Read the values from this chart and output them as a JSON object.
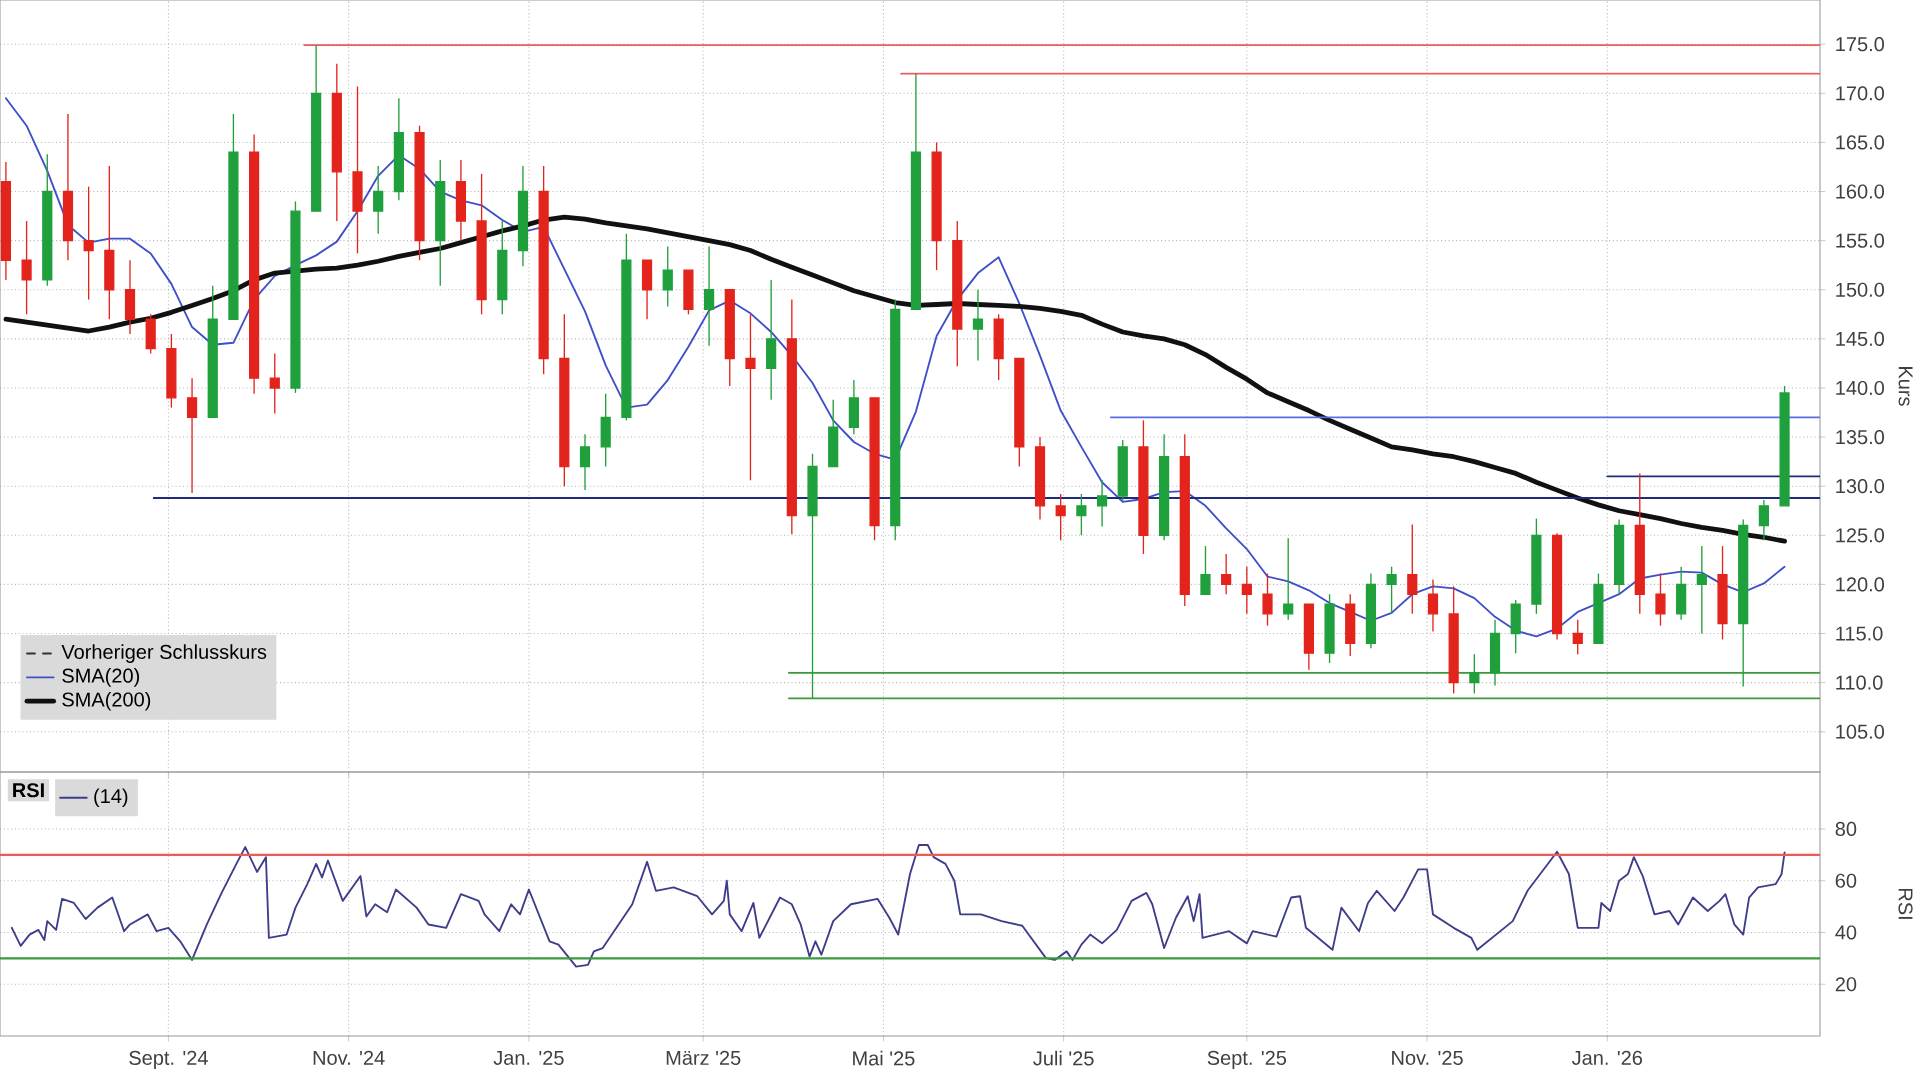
{
  "chart_data": [
    {
      "type": "candlestick",
      "ylabel": "Kurs",
      "x": [
        "2024-07-08",
        "2024-07-15",
        "2024-07-22",
        "2024-07-29",
        "2024-08-05",
        "2024-08-12",
        "2024-08-19",
        "2024-08-26",
        "2024-09-02",
        "2024-09-09",
        "2024-09-16",
        "2024-09-23",
        "2024-09-30",
        "2024-10-07",
        "2024-10-14",
        "2024-10-21",
        "2024-10-28",
        "2024-11-04",
        "2024-11-11",
        "2024-11-18",
        "2024-11-25",
        "2024-12-02",
        "2024-12-09",
        "2024-12-16",
        "2024-12-23",
        "2024-12-30",
        "2025-01-06",
        "2025-01-13",
        "2025-01-20",
        "2025-01-27",
        "2025-02-03",
        "2025-02-10",
        "2025-02-17",
        "2025-02-24",
        "2025-03-03",
        "2025-03-10",
        "2025-03-17",
        "2025-03-24",
        "2025-03-31",
        "2025-04-07",
        "2025-04-14",
        "2025-04-21",
        "2025-04-28",
        "2025-05-05",
        "2025-05-12",
        "2025-05-19",
        "2025-05-26",
        "2025-06-02",
        "2025-06-09",
        "2025-06-16",
        "2025-06-23",
        "2025-06-30",
        "2025-07-07",
        "2025-07-14",
        "2025-07-21",
        "2025-07-28",
        "2025-08-04",
        "2025-08-11",
        "2025-08-18",
        "2025-08-25",
        "2025-09-01",
        "2025-09-08",
        "2025-09-15",
        "2025-09-22",
        "2025-09-29",
        "2025-10-06",
        "2025-10-13",
        "2025-10-20",
        "2025-10-27",
        "2025-11-03",
        "2025-11-10",
        "2025-11-17",
        "2025-11-24",
        "2025-12-01",
        "2025-12-08",
        "2025-12-15",
        "2025-12-22",
        "2025-12-29",
        "2026-01-05",
        "2026-01-12",
        "2026-01-19",
        "2026-01-26",
        "2026-02-02",
        "2026-02-09",
        "2026-02-16",
        "2026-02-23",
        "2026-03-02"
      ],
      "ohlc": [
        [
          161,
          163,
          151,
          153
        ],
        [
          153,
          157,
          147.5,
          151
        ],
        [
          151,
          163.8,
          150.4,
          160
        ],
        [
          160,
          167.9,
          153,
          155
        ],
        [
          155,
          160.5,
          149,
          154
        ],
        [
          154,
          162.6,
          147,
          150
        ],
        [
          150,
          153,
          145.5,
          147
        ],
        [
          147,
          147.5,
          143.5,
          144
        ],
        [
          144,
          145.5,
          138,
          139
        ],
        [
          139,
          141,
          129.3,
          137
        ],
        [
          137,
          150.4,
          137,
          147
        ],
        [
          147,
          167.9,
          147,
          164
        ],
        [
          164,
          165.8,
          139.4,
          141
        ],
        [
          141,
          143.5,
          137.4,
          140
        ],
        [
          140,
          159,
          139.5,
          158
        ],
        [
          158,
          174.9,
          158,
          170
        ],
        [
          170,
          173,
          157,
          162
        ],
        [
          162,
          170.7,
          153.7,
          158
        ],
        [
          158,
          162.6,
          155.7,
          160
        ],
        [
          160,
          169.5,
          159.1,
          166
        ],
        [
          166,
          166.7,
          153,
          155
        ],
        [
          155,
          163.2,
          150.4,
          161
        ],
        [
          161,
          163.2,
          155,
          157
        ],
        [
          157,
          161.8,
          147.5,
          149
        ],
        [
          149,
          157,
          147.5,
          154
        ],
        [
          154,
          162.6,
          152.4,
          160
        ],
        [
          160,
          162.6,
          141.4,
          143
        ],
        [
          143,
          147.5,
          130,
          132
        ],
        [
          132,
          135.3,
          129.6,
          134
        ],
        [
          134,
          139.4,
          132,
          137
        ],
        [
          137,
          155.7,
          136.7,
          153
        ],
        [
          153,
          153,
          147,
          150
        ],
        [
          150,
          154.4,
          148.3,
          152
        ],
        [
          152,
          152,
          147.5,
          148
        ],
        [
          148,
          154.4,
          144.3,
          150
        ],
        [
          150,
          150,
          140.2,
          143
        ],
        [
          143,
          147.5,
          130.6,
          142
        ],
        [
          142,
          151,
          138.8,
          145
        ],
        [
          145,
          149,
          125.1,
          127
        ],
        [
          127,
          133.3,
          108.4,
          132
        ],
        [
          132,
          138.8,
          132,
          136
        ],
        [
          136,
          140.8,
          135.3,
          139
        ],
        [
          139,
          139,
          124.5,
          126
        ],
        [
          126,
          149,
          124.5,
          148
        ],
        [
          148,
          172,
          148,
          164
        ],
        [
          164,
          165,
          152,
          155
        ],
        [
          155,
          157,
          142.2,
          146
        ],
        [
          146,
          150,
          142.8,
          147
        ],
        [
          147,
          147.5,
          140.8,
          143
        ],
        [
          143,
          143,
          132,
          134
        ],
        [
          134,
          135,
          126.6,
          128
        ],
        [
          128,
          129.2,
          124.5,
          127
        ],
        [
          127,
          129.2,
          125,
          128
        ],
        [
          128,
          130.6,
          125.9,
          129
        ],
        [
          129,
          134.7,
          128.5,
          134
        ],
        [
          134,
          136.7,
          123.1,
          125
        ],
        [
          125,
          135.3,
          124.5,
          133
        ],
        [
          133,
          135.3,
          117.8,
          119
        ],
        [
          119,
          123.9,
          119,
          121
        ],
        [
          121,
          123.1,
          119,
          120
        ],
        [
          120,
          121.8,
          117,
          119
        ],
        [
          119,
          121.1,
          115.8,
          117
        ],
        [
          117,
          124.7,
          116.4,
          118
        ],
        [
          118,
          118,
          111.3,
          113
        ],
        [
          113,
          119,
          112,
          118
        ],
        [
          118,
          119,
          112.7,
          114
        ],
        [
          114,
          121.1,
          113.5,
          120
        ],
        [
          120,
          121.8,
          117,
          121
        ],
        [
          121,
          126.1,
          117,
          119
        ],
        [
          119,
          120.5,
          115.2,
          117
        ],
        [
          117,
          119.8,
          108.9,
          110
        ],
        [
          110,
          112.9,
          108.9,
          111
        ],
        [
          111,
          116.4,
          109.7,
          115
        ],
        [
          115,
          118.4,
          113,
          118
        ],
        [
          118,
          126.7,
          117,
          125
        ],
        [
          125,
          125.2,
          114.4,
          115
        ],
        [
          115,
          116.4,
          112.9,
          114
        ],
        [
          114,
          121.1,
          114,
          120
        ],
        [
          120,
          126.6,
          119,
          126
        ],
        [
          126,
          131.3,
          117,
          119
        ],
        [
          119,
          121.1,
          115.8,
          117
        ],
        [
          117,
          121.8,
          116.4,
          120
        ],
        [
          120,
          123.9,
          115,
          121
        ],
        [
          121,
          123.9,
          114.4,
          116
        ],
        [
          116,
          126.6,
          109.6,
          126
        ],
        [
          126,
          128.6,
          124.5,
          128
        ],
        [
          128,
          140.2,
          128,
          139.5
        ]
      ],
      "colors": [
        "#e3241c",
        "#e3241c",
        "#1fa03c",
        "#e3241c",
        "#e3241c",
        "#e3241c",
        "#e3241c",
        "#e3241c",
        "#e3241c",
        "#e3241c",
        "#1fa03c",
        "#1fa03c",
        "#e3241c",
        "#e3241c",
        "#1fa03c",
        "#1fa03c",
        "#e3241c",
        "#e3241c",
        "#1fa03c",
        "#1fa03c",
        "#e3241c",
        "#1fa03c",
        "#e3241c",
        "#e3241c",
        "#1fa03c",
        "#1fa03c",
        "#e3241c",
        "#e3241c",
        "#1fa03c",
        "#1fa03c",
        "#1fa03c",
        "#e3241c",
        "#1fa03c",
        "#e3241c",
        "#1fa03c",
        "#e3241c",
        "#e3241c",
        "#1fa03c",
        "#e3241c",
        "#1fa03c",
        "#1fa03c",
        "#1fa03c",
        "#e3241c",
        "#1fa03c",
        "#1fa03c",
        "#e3241c",
        "#e3241c",
        "#1fa03c",
        "#e3241c",
        "#e3241c",
        "#e3241c",
        "#e3241c",
        "#1fa03c",
        "#1fa03c",
        "#1fa03c",
        "#e3241c",
        "#1fa03c",
        "#e3241c",
        "#1fa03c",
        "#e3241c",
        "#e3241c",
        "#e3241c",
        "#1fa03c",
        "#e3241c",
        "#1fa03c",
        "#e3241c",
        "#1fa03c",
        "#1fa03c",
        "#e3241c",
        "#e3241c",
        "#e3241c",
        "#1fa03c",
        "#1fa03c",
        "#1fa03c",
        "#1fa03c",
        "#e3241c",
        "#e3241c",
        "#1fa03c",
        "#1fa03c",
        "#e3241c",
        "#e3241c",
        "#1fa03c",
        "#1fa03c",
        "#e3241c",
        "#1fa03c",
        "#1fa03c",
        "#1fa03c"
      ],
      "series": [
        {
          "name": "Vorheriger Schlusskurs",
          "type": "line",
          "color": "#333333",
          "line_style": "dashed",
          "values": [
            null,
            null,
            null,
            null,
            null,
            null,
            null,
            null,
            null,
            null,
            null,
            null,
            null,
            null,
            null,
            null,
            null,
            null,
            null,
            null,
            null,
            null,
            null,
            null,
            null,
            null,
            null,
            null,
            null,
            null,
            null,
            null,
            null,
            null,
            null,
            null,
            null,
            null,
            null,
            null,
            null,
            null,
            null,
            null,
            null,
            null,
            null,
            null,
            null,
            null,
            null,
            null,
            null,
            null,
            null,
            null,
            null,
            null,
            null,
            null,
            null,
            null,
            null,
            null,
            null,
            null,
            null,
            null,
            null,
            null,
            null,
            null,
            null,
            null,
            null,
            null,
            null,
            null,
            null,
            null,
            null,
            null,
            null,
            null,
            null,
            null,
            null
          ]
        },
        {
          "name": "SMA(20)",
          "type": "line",
          "color": "#3f4fc8",
          "values": [
            169.5,
            166.7,
            162.1,
            156.6,
            154.8,
            155.2,
            155.2,
            153.7,
            150.6,
            146.2,
            144.4,
            144.6,
            149,
            151.4,
            152.5,
            153.5,
            154.9,
            158,
            161.6,
            163.7,
            162.3,
            160,
            159.1,
            158.6,
            157.1,
            155.9,
            156.4,
            152.1,
            147.8,
            142.3,
            138,
            138.3,
            140.8,
            144.2,
            147.9,
            148.9,
            147.6,
            145.7,
            143.3,
            140.5,
            136.7,
            134.5,
            133.3,
            132.7,
            137.6,
            145.3,
            149,
            151.7,
            153.3,
            148.6,
            143.3,
            137.7,
            134,
            130.4,
            128.4,
            128.7,
            129.4,
            129.5,
            128,
            125.7,
            123.6,
            120.8,
            120.3,
            119.4,
            118.1,
            117.2,
            116.3,
            117.1,
            119,
            119.8,
            119.6,
            118.6,
            116.7,
            115.3,
            114.7,
            115.5,
            117.2,
            118.1,
            119,
            120.6,
            121,
            121.3,
            121.2,
            120,
            119.2,
            120.1,
            121.8
          ]
        },
        {
          "name": "SMA(200)",
          "type": "line",
          "color": "#111111",
          "values": [
            147,
            146.7,
            146.4,
            146.1,
            145.8,
            146.2,
            146.7,
            147.1,
            147.7,
            148.4,
            149.1,
            149.9,
            151,
            151.7,
            151.9,
            152.1,
            152.2,
            152.5,
            152.9,
            153.4,
            153.8,
            154.2,
            154.8,
            155.4,
            156,
            156.5,
            157.1,
            157.4,
            157.2,
            156.8,
            156.5,
            156.2,
            155.8,
            155.4,
            155,
            154.6,
            154,
            153.1,
            152.3,
            151.5,
            150.7,
            149.9,
            149.3,
            148.7,
            148.4,
            148.5,
            148.6,
            148.5,
            148.4,
            148.3,
            148.1,
            147.8,
            147.4,
            146.5,
            145.7,
            145.3,
            145,
            144.4,
            143.4,
            142.1,
            140.9,
            139.5,
            138.6,
            137.7,
            136.7,
            135.8,
            134.9,
            134,
            133.7,
            133.3,
            133,
            132.5,
            131.9,
            131.3,
            130.4,
            129.6,
            128.8,
            128.1,
            127.5,
            127.1,
            126.7,
            126.2,
            125.8,
            125.5,
            125.1,
            124.8,
            124.4
          ]
        },
        {
          "type": "line",
          "color": "#ee5a5a",
          "x": [
            "2024-10-17",
            "2026-03-14"
          ],
          "values": [
            174.9,
            174.9
          ]
        },
        {
          "type": "line",
          "color": "#ee5a5a",
          "x": [
            "2025-05-07",
            "2026-03-14"
          ],
          "values": [
            172,
            172
          ]
        },
        {
          "type": "line",
          "color": "#5b6ee0",
          "x": [
            "2025-07-17",
            "2026-03-14"
          ],
          "values": [
            137,
            137
          ]
        },
        {
          "type": "line",
          "color": "#1f2a7a",
          "x": [
            "2026-01-01",
            "2026-03-14"
          ],
          "values": [
            131,
            131
          ]
        },
        {
          "type": "line",
          "color": "#1f2a7a",
          "x": [
            "2024-08-27",
            "2026-03-14"
          ],
          "values": [
            128.8,
            128.8
          ]
        },
        {
          "type": "line",
          "color": "#3c9a3c",
          "x": [
            "2025-03-30",
            "2026-03-14"
          ],
          "values": [
            111,
            111
          ]
        },
        {
          "type": "line",
          "color": "#3c9a3c",
          "x": [
            "2025-03-30",
            "2026-03-14"
          ],
          "values": [
            108.4,
            108.4
          ]
        }
      ],
      "xlim": [
        "2024-07-06",
        "2026-03-14"
      ],
      "ylim": [
        100.9,
        179.5
      ],
      "xticks": [
        {
          "value": "2024-09-01",
          "label": null
        },
        {
          "value": "2024-11-01",
          "label": null
        },
        {
          "value": "2025-01-01",
          "label": null
        },
        {
          "value": "2025-03-01",
          "label": null
        },
        {
          "value": "2025-05-01",
          "label": null
        },
        {
          "value": "2025-07-01",
          "label": null
        },
        {
          "value": "2025-09-01",
          "label": null
        },
        {
          "value": "2025-11-01",
          "label": null
        },
        {
          "value": "2026-01-01",
          "label": null
        }
      ],
      "yticks": [
        {
          "value": 105,
          "label": "105.0"
        },
        {
          "value": 110,
          "label": "110.0"
        },
        {
          "value": 115,
          "label": "115.0"
        },
        {
          "value": 120,
          "label": "120.0"
        },
        {
          "value": 125,
          "label": "125.0"
        },
        {
          "value": 130,
          "label": "130.0"
        },
        {
          "value": 135,
          "label": "135.0"
        },
        {
          "value": 140,
          "label": "140.0"
        },
        {
          "value": 145,
          "label": "145.0"
        },
        {
          "value": 150,
          "label": "150.0"
        },
        {
          "value": 155,
          "label": "155.0"
        },
        {
          "value": 160,
          "label": "160.0"
        },
        {
          "value": 165,
          "label": "165.0"
        },
        {
          "value": 170,
          "label": "170.0"
        },
        {
          "value": 175,
          "label": "175.0"
        }
      ],
      "grid": true,
      "legend": "bottom left",
      "tick_labels": "y"
    },
    {
      "type": "line",
      "title": "RSI",
      "ylabel": "RSI",
      "x": [
        "2024-07-10",
        "2024-07-13",
        "2024-07-16",
        "2024-07-19",
        "2024-07-21",
        "2024-07-22",
        "2024-07-25",
        "2024-07-27",
        "2024-07-31",
        "2024-08-04",
        "2024-08-08",
        "2024-08-13",
        "2024-08-17",
        "2024-08-19",
        "2024-08-25",
        "2024-08-28",
        "2024-09-01",
        "2024-09-05",
        "2024-09-09",
        "2024-09-14",
        "2024-09-19",
        "2024-09-24",
        "2024-09-27",
        "2024-10-01",
        "2024-10-04",
        "2024-10-05",
        "2024-10-11",
        "2024-10-14",
        "2024-10-18",
        "2024-10-21",
        "2024-10-23",
        "2024-10-25",
        "2024-10-30",
        "2024-11-05",
        "2024-11-07",
        "2024-11-10",
        "2024-11-14",
        "2024-11-17",
        "2024-11-24",
        "2024-11-28",
        "2024-12-04",
        "2024-12-09",
        "2024-12-15",
        "2024-12-17",
        "2024-12-22",
        "2024-12-26",
        "2024-12-29",
        "2025-01-01",
        "2025-01-08",
        "2025-01-11",
        "2025-01-17",
        "2025-01-21",
        "2025-01-23",
        "2025-01-26",
        "2025-02-05",
        "2025-02-10",
        "2025-02-13",
        "2025-02-19",
        "2025-02-27",
        "2025-03-04",
        "2025-03-08",
        "2025-03-09",
        "2025-03-10",
        "2025-03-14",
        "2025-03-18",
        "2025-03-20",
        "2025-03-27",
        "2025-03-31",
        "2025-04-03",
        "2025-04-06",
        "2025-04-08",
        "2025-04-10",
        "2025-04-14",
        "2025-04-20",
        "2025-04-29",
        "2025-05-03",
        "2025-05-06",
        "2025-05-10",
        "2025-05-13",
        "2025-05-16",
        "2025-05-18",
        "2025-05-22",
        "2025-05-25",
        "2025-05-27",
        "2025-06-03",
        "2025-06-10",
        "2025-06-17",
        "2025-06-25",
        "2025-06-28",
        "2025-07-02",
        "2025-07-04",
        "2025-07-07",
        "2025-07-10",
        "2025-07-14",
        "2025-07-19",
        "2025-07-24",
        "2025-07-29",
        "2025-07-31",
        "2025-08-04",
        "2025-08-08",
        "2025-08-12",
        "2025-08-14",
        "2025-08-16",
        "2025-08-17",
        "2025-08-26",
        "2025-09-01",
        "2025-09-03",
        "2025-09-11",
        "2025-09-16",
        "2025-09-19",
        "2025-09-21",
        "2025-09-30",
        "2025-10-03",
        "2025-10-09",
        "2025-10-12",
        "2025-10-15",
        "2025-10-21",
        "2025-10-24",
        "2025-10-29",
        "2025-11-01",
        "2025-11-03",
        "2025-11-10",
        "2025-11-16",
        "2025-11-18",
        "2025-11-30",
        "2025-12-05",
        "2025-12-15",
        "2025-12-19",
        "2025-12-22",
        "2025-12-29",
        "2025-12-30",
        "2026-01-02",
        "2026-01-05",
        "2026-01-08",
        "2026-01-10",
        "2026-01-13",
        "2026-01-17",
        "2026-01-22",
        "2026-01-25",
        "2026-01-30",
        "2026-02-04",
        "2026-02-08",
        "2026-02-10",
        "2026-02-13",
        "2026-02-16",
        "2026-02-18",
        "2026-02-21",
        "2026-02-27",
        "2026-03-01",
        "2026-03-02"
      ],
      "series": [
        {
          "name": "(14)",
          "color": "#3d3d8a",
          "values": [
            41.8,
            34.8,
            39.2,
            41,
            37.1,
            44.4,
            41,
            53,
            51.4,
            45.2,
            49.6,
            53.5,
            40.5,
            43.1,
            47,
            40.5,
            41.8,
            36.6,
            29.4,
            43.1,
            55.3,
            66.5,
            73,
            63.4,
            69.1,
            37.9,
            39.2,
            49.6,
            58.7,
            66.5,
            61.3,
            67.8,
            52.2,
            61.8,
            46.2,
            50.9,
            47.8,
            56.6,
            49.6,
            43.1,
            41.8,
            54.8,
            52.2,
            47,
            40.5,
            50.9,
            47,
            56.6,
            36.6,
            35.3,
            26.8,
            27.5,
            32.7,
            34,
            50.9,
            67.3,
            56.1,
            57.4,
            54,
            47,
            52.2,
            60,
            47,
            40.5,
            51.4,
            37.9,
            53.5,
            50.9,
            43.1,
            30.7,
            36.6,
            31.4,
            44.4,
            50.9,
            53,
            45.7,
            39.2,
            62.6,
            73.8,
            73.8,
            69.1,
            66.5,
            60,
            47,
            47,
            44.4,
            42.6,
            30.1,
            29.4,
            32.7,
            29.4,
            35.3,
            39.2,
            35.8,
            41,
            52.2,
            55.3,
            50.9,
            34,
            45.7,
            54,
            44.4,
            54.8,
            37.9,
            40.5,
            35.8,
            40.5,
            38.4,
            53.5,
            54,
            41.8,
            33.3,
            49.6,
            40.5,
            51.4,
            56.1,
            48.3,
            53.5,
            64.4,
            64.4,
            47,
            41.8,
            37.9,
            33.3,
            44.4,
            56.1,
            71.2,
            62.6,
            41.8,
            41.8,
            51.4,
            48.3,
            60,
            62.6,
            69.1,
            61.8,
            47,
            48.3,
            43.1,
            53.5,
            48.3,
            52.2,
            54.8,
            43.1,
            39.2,
            53.5,
            57.4,
            58.7,
            62.6,
            70.9
          ]
        }
      ],
      "xlim": [
        "2024-07-06",
        "2026-03-14"
      ],
      "ylim": [
        0,
        102
      ],
      "xticks": [
        {
          "value": "2024-09-01",
          "label": "Sept. '24"
        },
        {
          "value": "2024-11-01",
          "label": "Nov. '24"
        },
        {
          "value": "2025-01-01",
          "label": "Jan. '25"
        },
        {
          "value": "2025-03-01",
          "label": "März '25"
        },
        {
          "value": "2025-05-01",
          "label": "Mai '25"
        },
        {
          "value": "2025-07-01",
          "label": "Juli '25"
        },
        {
          "value": "2025-09-01",
          "label": "Sept. '25"
        },
        {
          "value": "2025-11-01",
          "label": "Nov. '25"
        },
        {
          "value": "2026-01-01",
          "label": "Jan. '26"
        }
      ],
      "yticks": [
        20,
        40,
        60,
        80
      ],
      "ref_lines": [
        {
          "axis": "y",
          "value": 70,
          "color": "#ee5a5a"
        },
        {
          "axis": "y",
          "value": 30,
          "color": "#3c9a3c"
        }
      ],
      "grid": true,
      "legend": "top left"
    }
  ]
}
